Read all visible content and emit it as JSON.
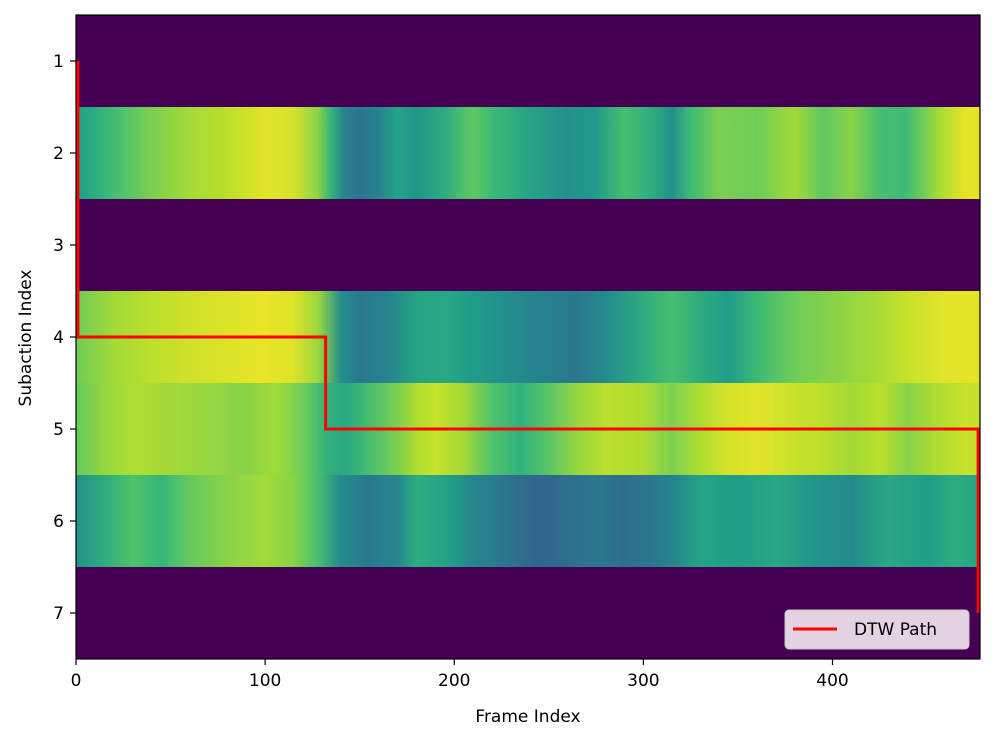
{
  "chart_data": {
    "type": "heatmap",
    "title": "",
    "xlabel": "Frame Index",
    "ylabel": "Subaction Index",
    "xlim": [
      0,
      478
    ],
    "ylim": [
      7.5,
      0.5
    ],
    "x_ticks": [
      0,
      100,
      200,
      300,
      400
    ],
    "y_ticks": [
      1,
      2,
      3,
      4,
      5,
      6,
      7
    ],
    "grid": false,
    "colormap": "viridis",
    "value_range": [
      0,
      1
    ],
    "legend": {
      "position": "lower-right",
      "entries": [
        {
          "label": "DTW Path",
          "color": "#ff0000"
        }
      ]
    },
    "rows": [
      {
        "subaction": 1,
        "profile": [
          [
            0,
            0.0
          ],
          [
            478,
            0.0
          ]
        ]
      },
      {
        "subaction": 2,
        "profile": [
          [
            0,
            0.55
          ],
          [
            10,
            0.62
          ],
          [
            25,
            0.72
          ],
          [
            40,
            0.8
          ],
          [
            60,
            0.86
          ],
          [
            80,
            0.9
          ],
          [
            100,
            0.96
          ],
          [
            115,
            0.94
          ],
          [
            128,
            0.82
          ],
          [
            135,
            0.65
          ],
          [
            142,
            0.45
          ],
          [
            150,
            0.38
          ],
          [
            160,
            0.45
          ],
          [
            170,
            0.58
          ],
          [
            180,
            0.52
          ],
          [
            195,
            0.62
          ],
          [
            210,
            0.75
          ],
          [
            220,
            0.68
          ],
          [
            240,
            0.58
          ],
          [
            260,
            0.5
          ],
          [
            275,
            0.55
          ],
          [
            290,
            0.7
          ],
          [
            305,
            0.62
          ],
          [
            315,
            0.5
          ],
          [
            325,
            0.68
          ],
          [
            340,
            0.8
          ],
          [
            360,
            0.78
          ],
          [
            380,
            0.86
          ],
          [
            395,
            0.75
          ],
          [
            410,
            0.82
          ],
          [
            425,
            0.7
          ],
          [
            438,
            0.68
          ],
          [
            448,
            0.78
          ],
          [
            458,
            0.88
          ],
          [
            470,
            0.96
          ],
          [
            478,
            0.96
          ]
        ]
      },
      {
        "subaction": 3,
        "profile": [
          [
            0,
            0.0
          ],
          [
            478,
            0.0
          ]
        ]
      },
      {
        "subaction": 4,
        "profile": [
          [
            0,
            0.78
          ],
          [
            20,
            0.86
          ],
          [
            40,
            0.9
          ],
          [
            60,
            0.93
          ],
          [
            80,
            0.95
          ],
          [
            100,
            0.97
          ],
          [
            115,
            0.95
          ],
          [
            128,
            0.85
          ],
          [
            140,
            0.5
          ],
          [
            150,
            0.4
          ],
          [
            165,
            0.45
          ],
          [
            180,
            0.58
          ],
          [
            195,
            0.6
          ],
          [
            210,
            0.55
          ],
          [
            225,
            0.5
          ],
          [
            245,
            0.45
          ],
          [
            265,
            0.4
          ],
          [
            280,
            0.48
          ],
          [
            300,
            0.62
          ],
          [
            315,
            0.7
          ],
          [
            330,
            0.62
          ],
          [
            345,
            0.55
          ],
          [
            360,
            0.68
          ],
          [
            380,
            0.78
          ],
          [
            400,
            0.82
          ],
          [
            420,
            0.86
          ],
          [
            440,
            0.92
          ],
          [
            460,
            0.96
          ],
          [
            478,
            0.96
          ]
        ]
      },
      {
        "subaction": 5,
        "profile": [
          [
            0,
            0.76
          ],
          [
            15,
            0.84
          ],
          [
            30,
            0.88
          ],
          [
            50,
            0.86
          ],
          [
            70,
            0.84
          ],
          [
            90,
            0.82
          ],
          [
            105,
            0.86
          ],
          [
            120,
            0.78
          ],
          [
            133,
            0.64
          ],
          [
            142,
            0.6
          ],
          [
            155,
            0.7
          ],
          [
            170,
            0.8
          ],
          [
            180,
            0.88
          ],
          [
            190,
            0.92
          ],
          [
            205,
            0.86
          ],
          [
            220,
            0.72
          ],
          [
            235,
            0.64
          ],
          [
            250,
            0.74
          ],
          [
            265,
            0.84
          ],
          [
            280,
            0.9
          ],
          [
            300,
            0.88
          ],
          [
            315,
            0.8
          ],
          [
            330,
            0.88
          ],
          [
            345,
            0.94
          ],
          [
            360,
            0.96
          ],
          [
            380,
            0.92
          ],
          [
            395,
            0.9
          ],
          [
            410,
            0.86
          ],
          [
            425,
            0.9
          ],
          [
            440,
            0.82
          ],
          [
            455,
            0.88
          ],
          [
            470,
            0.92
          ],
          [
            478,
            0.92
          ]
        ]
      },
      {
        "subaction": 6,
        "profile": [
          [
            0,
            0.5
          ],
          [
            15,
            0.62
          ],
          [
            30,
            0.72
          ],
          [
            45,
            0.66
          ],
          [
            60,
            0.76
          ],
          [
            80,
            0.82
          ],
          [
            100,
            0.86
          ],
          [
            115,
            0.82
          ],
          [
            128,
            0.7
          ],
          [
            140,
            0.48
          ],
          [
            155,
            0.4
          ],
          [
            170,
            0.46
          ],
          [
            180,
            0.62
          ],
          [
            195,
            0.58
          ],
          [
            210,
            0.46
          ],
          [
            225,
            0.4
          ],
          [
            245,
            0.32
          ],
          [
            260,
            0.36
          ],
          [
            275,
            0.4
          ],
          [
            290,
            0.35
          ],
          [
            305,
            0.4
          ],
          [
            315,
            0.45
          ],
          [
            330,
            0.58
          ],
          [
            350,
            0.55
          ],
          [
            370,
            0.6
          ],
          [
            390,
            0.52
          ],
          [
            410,
            0.48
          ],
          [
            430,
            0.6
          ],
          [
            450,
            0.56
          ],
          [
            465,
            0.62
          ],
          [
            478,
            0.58
          ]
        ]
      },
      {
        "subaction": 7,
        "profile": [
          [
            0,
            0.0
          ],
          [
            478,
            0.0
          ]
        ]
      }
    ],
    "series": [
      {
        "name": "DTW Path",
        "color": "#ff0000",
        "points": [
          [
            1,
            1
          ],
          [
            1,
            4
          ],
          [
            132,
            4
          ],
          [
            132,
            5
          ],
          [
            477,
            5
          ],
          [
            477,
            7
          ]
        ]
      }
    ]
  }
}
